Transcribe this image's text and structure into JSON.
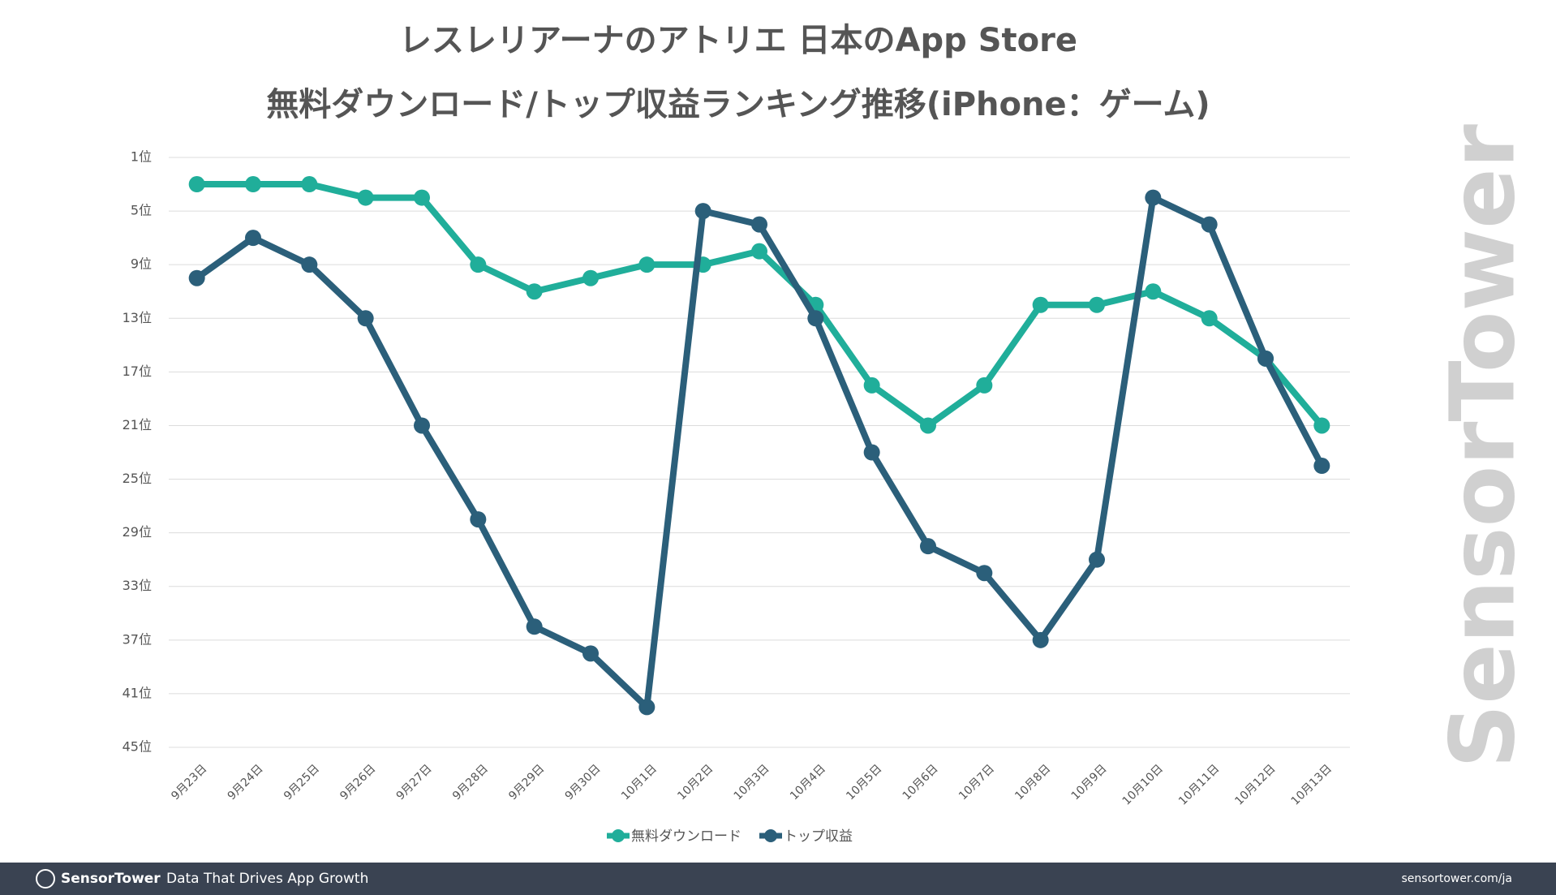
{
  "chart_data": {
    "type": "line",
    "title": "レスレリアーナのアトリエ 日本のApp Store",
    "subtitle": "無料ダウンロード/トップ収益ランキング推移(iPhone：ゲーム)",
    "categories": [
      "9月23日",
      "9月24日",
      "9月25日",
      "9月26日",
      "9月27日",
      "9月28日",
      "9月29日",
      "9月30日",
      "10月1日",
      "10月2日",
      "10月3日",
      "10月4日",
      "10月5日",
      "10月6日",
      "10月7日",
      "10月8日",
      "10月9日",
      "10月10日",
      "10月11日",
      "10月12日",
      "10月13日"
    ],
    "series": [
      {
        "name": "無料ダウンロード",
        "color": "#20ae9a",
        "values": [
          3,
          3,
          3,
          4,
          4,
          9,
          11,
          10,
          9,
          9,
          8,
          12,
          18,
          21,
          18,
          12,
          12,
          11,
          13,
          16,
          21
        ]
      },
      {
        "name": "トップ収益",
        "color": "#2b5f7a",
        "values": [
          10,
          7,
          9,
          13,
          21,
          28,
          36,
          38,
          42,
          5,
          6,
          13,
          23,
          30,
          32,
          37,
          31,
          4,
          6,
          16,
          24
        ]
      }
    ],
    "ylim": [
      1,
      45
    ],
    "y_inverted": true,
    "yticks": [
      {
        "value": 1,
        "label": "1位"
      },
      {
        "value": 5,
        "label": "5位"
      },
      {
        "value": 9,
        "label": "9位"
      },
      {
        "value": 13,
        "label": "13位"
      },
      {
        "value": 17,
        "label": "17位"
      },
      {
        "value": 21,
        "label": "21位"
      },
      {
        "value": 25,
        "label": "25位"
      },
      {
        "value": 29,
        "label": "29位"
      },
      {
        "value": 33,
        "label": "33位"
      },
      {
        "value": 37,
        "label": "37位"
      },
      {
        "value": 41,
        "label": "41位"
      },
      {
        "value": 45,
        "label": "45位"
      }
    ],
    "grid": true,
    "legend": "bottom"
  },
  "watermark": "SensorTower",
  "footer": {
    "brand": "SensorTower",
    "tagline": "Data That Drives App Growth",
    "url": "sensortower.com/ja"
  }
}
